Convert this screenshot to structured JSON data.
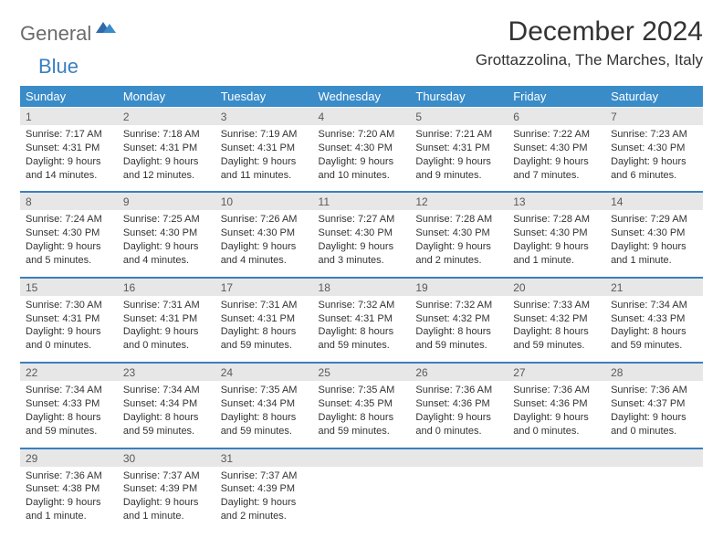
{
  "logo": {
    "part_a": "General",
    "part_b": "Blue"
  },
  "title": "December 2024",
  "location": "Grottazzolina, The Marches, Italy",
  "colors": {
    "header_bg": "#3a8cc9",
    "header_text": "#ffffff",
    "daynum_bg": "#e7e7e7",
    "divider": "#3a7fbf",
    "logo_gray": "#6b6b6b",
    "logo_blue": "#3a7fbf"
  },
  "days_of_week": [
    "Sunday",
    "Monday",
    "Tuesday",
    "Wednesday",
    "Thursday",
    "Friday",
    "Saturday"
  ],
  "weeks": [
    [
      {
        "n": "1",
        "sr": "Sunrise: 7:17 AM",
        "ss": "Sunset: 4:31 PM",
        "d1": "Daylight: 9 hours",
        "d2": "and 14 minutes."
      },
      {
        "n": "2",
        "sr": "Sunrise: 7:18 AM",
        "ss": "Sunset: 4:31 PM",
        "d1": "Daylight: 9 hours",
        "d2": "and 12 minutes."
      },
      {
        "n": "3",
        "sr": "Sunrise: 7:19 AM",
        "ss": "Sunset: 4:31 PM",
        "d1": "Daylight: 9 hours",
        "d2": "and 11 minutes."
      },
      {
        "n": "4",
        "sr": "Sunrise: 7:20 AM",
        "ss": "Sunset: 4:30 PM",
        "d1": "Daylight: 9 hours",
        "d2": "and 10 minutes."
      },
      {
        "n": "5",
        "sr": "Sunrise: 7:21 AM",
        "ss": "Sunset: 4:31 PM",
        "d1": "Daylight: 9 hours",
        "d2": "and 9 minutes."
      },
      {
        "n": "6",
        "sr": "Sunrise: 7:22 AM",
        "ss": "Sunset: 4:30 PM",
        "d1": "Daylight: 9 hours",
        "d2": "and 7 minutes."
      },
      {
        "n": "7",
        "sr": "Sunrise: 7:23 AM",
        "ss": "Sunset: 4:30 PM",
        "d1": "Daylight: 9 hours",
        "d2": "and 6 minutes."
      }
    ],
    [
      {
        "n": "8",
        "sr": "Sunrise: 7:24 AM",
        "ss": "Sunset: 4:30 PM",
        "d1": "Daylight: 9 hours",
        "d2": "and 5 minutes."
      },
      {
        "n": "9",
        "sr": "Sunrise: 7:25 AM",
        "ss": "Sunset: 4:30 PM",
        "d1": "Daylight: 9 hours",
        "d2": "and 4 minutes."
      },
      {
        "n": "10",
        "sr": "Sunrise: 7:26 AM",
        "ss": "Sunset: 4:30 PM",
        "d1": "Daylight: 9 hours",
        "d2": "and 4 minutes."
      },
      {
        "n": "11",
        "sr": "Sunrise: 7:27 AM",
        "ss": "Sunset: 4:30 PM",
        "d1": "Daylight: 9 hours",
        "d2": "and 3 minutes."
      },
      {
        "n": "12",
        "sr": "Sunrise: 7:28 AM",
        "ss": "Sunset: 4:30 PM",
        "d1": "Daylight: 9 hours",
        "d2": "and 2 minutes."
      },
      {
        "n": "13",
        "sr": "Sunrise: 7:28 AM",
        "ss": "Sunset: 4:30 PM",
        "d1": "Daylight: 9 hours",
        "d2": "and 1 minute."
      },
      {
        "n": "14",
        "sr": "Sunrise: 7:29 AM",
        "ss": "Sunset: 4:30 PM",
        "d1": "Daylight: 9 hours",
        "d2": "and 1 minute."
      }
    ],
    [
      {
        "n": "15",
        "sr": "Sunrise: 7:30 AM",
        "ss": "Sunset: 4:31 PM",
        "d1": "Daylight: 9 hours",
        "d2": "and 0 minutes."
      },
      {
        "n": "16",
        "sr": "Sunrise: 7:31 AM",
        "ss": "Sunset: 4:31 PM",
        "d1": "Daylight: 9 hours",
        "d2": "and 0 minutes."
      },
      {
        "n": "17",
        "sr": "Sunrise: 7:31 AM",
        "ss": "Sunset: 4:31 PM",
        "d1": "Daylight: 8 hours",
        "d2": "and 59 minutes."
      },
      {
        "n": "18",
        "sr": "Sunrise: 7:32 AM",
        "ss": "Sunset: 4:31 PM",
        "d1": "Daylight: 8 hours",
        "d2": "and 59 minutes."
      },
      {
        "n": "19",
        "sr": "Sunrise: 7:32 AM",
        "ss": "Sunset: 4:32 PM",
        "d1": "Daylight: 8 hours",
        "d2": "and 59 minutes."
      },
      {
        "n": "20",
        "sr": "Sunrise: 7:33 AM",
        "ss": "Sunset: 4:32 PM",
        "d1": "Daylight: 8 hours",
        "d2": "and 59 minutes."
      },
      {
        "n": "21",
        "sr": "Sunrise: 7:34 AM",
        "ss": "Sunset: 4:33 PM",
        "d1": "Daylight: 8 hours",
        "d2": "and 59 minutes."
      }
    ],
    [
      {
        "n": "22",
        "sr": "Sunrise: 7:34 AM",
        "ss": "Sunset: 4:33 PM",
        "d1": "Daylight: 8 hours",
        "d2": "and 59 minutes."
      },
      {
        "n": "23",
        "sr": "Sunrise: 7:34 AM",
        "ss": "Sunset: 4:34 PM",
        "d1": "Daylight: 8 hours",
        "d2": "and 59 minutes."
      },
      {
        "n": "24",
        "sr": "Sunrise: 7:35 AM",
        "ss": "Sunset: 4:34 PM",
        "d1": "Daylight: 8 hours",
        "d2": "and 59 minutes."
      },
      {
        "n": "25",
        "sr": "Sunrise: 7:35 AM",
        "ss": "Sunset: 4:35 PM",
        "d1": "Daylight: 8 hours",
        "d2": "and 59 minutes."
      },
      {
        "n": "26",
        "sr": "Sunrise: 7:36 AM",
        "ss": "Sunset: 4:36 PM",
        "d1": "Daylight: 9 hours",
        "d2": "and 0 minutes."
      },
      {
        "n": "27",
        "sr": "Sunrise: 7:36 AM",
        "ss": "Sunset: 4:36 PM",
        "d1": "Daylight: 9 hours",
        "d2": "and 0 minutes."
      },
      {
        "n": "28",
        "sr": "Sunrise: 7:36 AM",
        "ss": "Sunset: 4:37 PM",
        "d1": "Daylight: 9 hours",
        "d2": "and 0 minutes."
      }
    ],
    [
      {
        "n": "29",
        "sr": "Sunrise: 7:36 AM",
        "ss": "Sunset: 4:38 PM",
        "d1": "Daylight: 9 hours",
        "d2": "and 1 minute."
      },
      {
        "n": "30",
        "sr": "Sunrise: 7:37 AM",
        "ss": "Sunset: 4:39 PM",
        "d1": "Daylight: 9 hours",
        "d2": "and 1 minute."
      },
      {
        "n": "31",
        "sr": "Sunrise: 7:37 AM",
        "ss": "Sunset: 4:39 PM",
        "d1": "Daylight: 9 hours",
        "d2": "and 2 minutes."
      },
      null,
      null,
      null,
      null
    ]
  ]
}
